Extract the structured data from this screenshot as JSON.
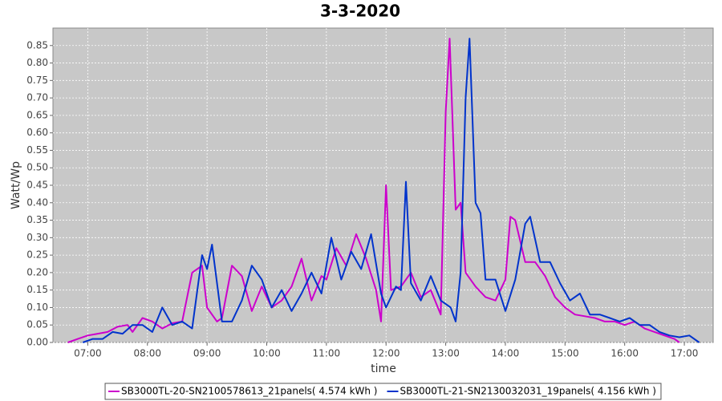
{
  "chart_data": {
    "type": "line",
    "title": "3-3-2020",
    "xlabel": "time",
    "ylabel": "Watt/Wp",
    "xlim": [
      "06:25",
      "17:29"
    ],
    "xticks": [
      "07:00",
      "08:00",
      "09:00",
      "10:00",
      "11:00",
      "12:00",
      "13:00",
      "14:00",
      "15:00",
      "16:00",
      "17:00"
    ],
    "ylim": [
      0,
      0.9
    ],
    "yticks": [
      {
        "value": 0,
        "label": "0.00"
      },
      {
        "value": 0.05,
        "label": "0.05"
      },
      {
        "value": 0.1,
        "label": "0.10"
      },
      {
        "value": 0.15,
        "label": "0.15"
      },
      {
        "value": 0.2,
        "label": "0.20"
      },
      {
        "value": 0.25,
        "label": "0.25"
      },
      {
        "value": 0.3,
        "label": "0.30"
      },
      {
        "value": 0.35,
        "label": "0.35"
      },
      {
        "value": 0.4,
        "label": "0.40"
      },
      {
        "value": 0.45,
        "label": "0.45"
      },
      {
        "value": 0.5,
        "label": "0.50"
      },
      {
        "value": 0.55,
        "label": "0.55"
      },
      {
        "value": 0.6,
        "label": "0.60"
      },
      {
        "value": 0.65,
        "label": "0.65"
      },
      {
        "value": 0.7,
        "label": "0.70"
      },
      {
        "value": 0.75,
        "label": "0.75"
      },
      {
        "value": 0.8,
        "label": "0.80"
      },
      {
        "value": 0.85,
        "label": "0.85"
      }
    ],
    "grid": true,
    "legend": "bottom",
    "series": [
      {
        "name": "SB3000TL-20-SN2100578613_21panels( 4.574 kWh )",
        "color": "#cc00cc",
        "x": [
          "06:40",
          "06:50",
          "07:00",
          "07:10",
          "07:20",
          "07:30",
          "07:40",
          "07:45",
          "07:55",
          "08:05",
          "08:15",
          "08:25",
          "08:35",
          "08:45",
          "08:55",
          "09:00",
          "09:10",
          "09:15",
          "09:25",
          "09:35",
          "09:45",
          "09:55",
          "10:05",
          "10:15",
          "10:25",
          "10:35",
          "10:45",
          "10:55",
          "11:00",
          "11:10",
          "11:20",
          "11:30",
          "11:40",
          "11:50",
          "11:55",
          "12:00",
          "12:05",
          "12:15",
          "12:25",
          "12:35",
          "12:45",
          "12:55",
          "13:00",
          "13:04",
          "13:10",
          "13:15",
          "13:20",
          "13:30",
          "13:40",
          "13:50",
          "14:00",
          "14:05",
          "14:10",
          "14:20",
          "14:30",
          "14:40",
          "14:50",
          "15:00",
          "15:10",
          "15:20",
          "15:30",
          "15:40",
          "15:50",
          "16:00",
          "16:10",
          "16:20",
          "16:30",
          "16:40",
          "16:50",
          "16:55"
        ],
        "values": [
          0,
          0.01,
          0.02,
          0.025,
          0.03,
          0.045,
          0.05,
          0.03,
          0.07,
          0.06,
          0.04,
          0.055,
          0.06,
          0.2,
          0.22,
          0.1,
          0.06,
          0.07,
          0.22,
          0.19,
          0.09,
          0.16,
          0.1,
          0.12,
          0.16,
          0.24,
          0.12,
          0.19,
          0.18,
          0.27,
          0.22,
          0.31,
          0.24,
          0.15,
          0.06,
          0.45,
          0.15,
          0.16,
          0.2,
          0.13,
          0.15,
          0.08,
          0.66,
          0.87,
          0.38,
          0.4,
          0.2,
          0.16,
          0.13,
          0.12,
          0.18,
          0.36,
          0.35,
          0.23,
          0.23,
          0.19,
          0.13,
          0.1,
          0.08,
          0.075,
          0.07,
          0.06,
          0.06,
          0.05,
          0.06,
          0.04,
          0.03,
          0.02,
          0.01,
          0
        ]
      },
      {
        "name": "SB3000TL-21-SN2130032031_19panels( 4.156 kWh )",
        "color": "#0033cc",
        "x": [
          "06:55",
          "07:05",
          "07:15",
          "07:25",
          "07:35",
          "07:45",
          "07:55",
          "08:05",
          "08:15",
          "08:25",
          "08:35",
          "08:45",
          "08:55",
          "09:00",
          "09:05",
          "09:15",
          "09:25",
          "09:35",
          "09:45",
          "09:55",
          "10:05",
          "10:15",
          "10:25",
          "10:35",
          "10:45",
          "10:55",
          "11:05",
          "11:15",
          "11:25",
          "11:35",
          "11:45",
          "11:55",
          "12:00",
          "12:10",
          "12:15",
          "12:20",
          "12:25",
          "12:35",
          "12:45",
          "12:55",
          "13:05",
          "13:10",
          "13:15",
          "13:20",
          "13:24",
          "13:30",
          "13:35",
          "13:40",
          "13:50",
          "14:00",
          "14:10",
          "14:20",
          "14:25",
          "14:35",
          "14:45",
          "14:55",
          "15:05",
          "15:15",
          "15:25",
          "15:35",
          "15:45",
          "15:55",
          "16:05",
          "16:15",
          "16:25",
          "16:35",
          "16:45",
          "16:55",
          "17:05",
          "17:15"
        ],
        "values": [
          0,
          0.01,
          0.01,
          0.03,
          0.025,
          0.05,
          0.05,
          0.03,
          0.1,
          0.05,
          0.06,
          0.04,
          0.25,
          0.21,
          0.28,
          0.06,
          0.06,
          0.12,
          0.22,
          0.18,
          0.1,
          0.15,
          0.09,
          0.14,
          0.2,
          0.14,
          0.3,
          0.18,
          0.26,
          0.21,
          0.31,
          0.14,
          0.1,
          0.16,
          0.15,
          0.46,
          0.17,
          0.12,
          0.19,
          0.12,
          0.1,
          0.06,
          0.2,
          0.7,
          0.87,
          0.4,
          0.37,
          0.18,
          0.18,
          0.09,
          0.18,
          0.34,
          0.36,
          0.23,
          0.23,
          0.17,
          0.12,
          0.14,
          0.08,
          0.08,
          0.07,
          0.06,
          0.07,
          0.05,
          0.05,
          0.03,
          0.02,
          0.015,
          0.02,
          0
        ]
      }
    ]
  }
}
